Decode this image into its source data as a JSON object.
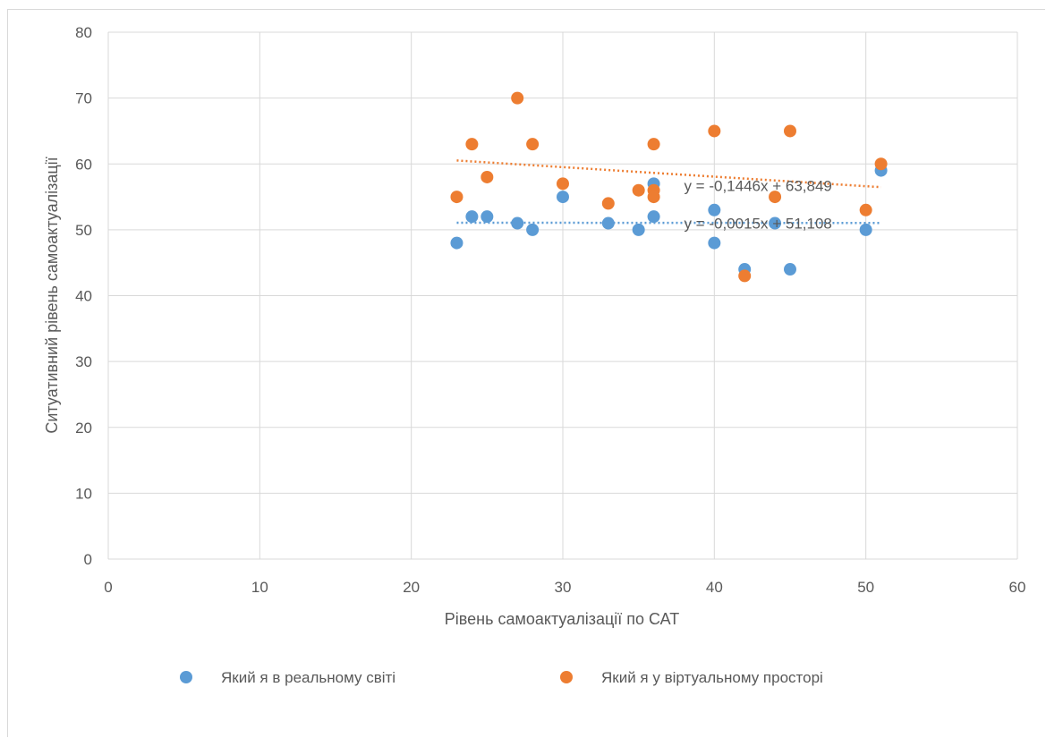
{
  "chart_data": {
    "type": "scatter",
    "xlabel": "Рівень самоактуалізації по САТ",
    "ylabel": "Ситуативний рівень самоактуалізації",
    "xlim": [
      0,
      60
    ],
    "ylim": [
      0,
      80
    ],
    "xticks": [
      0,
      10,
      20,
      30,
      40,
      50,
      60
    ],
    "yticks": [
      0,
      10,
      20,
      30,
      40,
      50,
      60,
      70,
      80
    ],
    "grid": true,
    "legend_position": "bottom",
    "series": [
      {
        "name": "Який я в реальному світі",
        "color": "#5B9BD5",
        "points": [
          [
            23,
            48
          ],
          [
            24,
            52
          ],
          [
            25,
            52
          ],
          [
            27,
            51
          ],
          [
            28,
            50
          ],
          [
            30,
            55
          ],
          [
            33,
            51
          ],
          [
            35,
            50
          ],
          [
            36,
            57
          ],
          [
            36,
            52
          ],
          [
            40,
            53
          ],
          [
            40,
            48
          ],
          [
            42,
            44
          ],
          [
            44,
            51
          ],
          [
            45,
            44
          ],
          [
            50,
            50
          ],
          [
            51,
            59
          ]
        ],
        "trendline": {
          "type": "linear",
          "slope": -0.0015,
          "intercept": 51.108,
          "x_range": [
            23,
            51
          ],
          "equation": "y = -0,0015x + 51,108"
        }
      },
      {
        "name": "Який я у віртуальному просторі",
        "color": "#ED7D31",
        "points": [
          [
            23,
            55
          ],
          [
            24,
            63
          ],
          [
            25,
            58
          ],
          [
            27,
            70
          ],
          [
            28,
            63
          ],
          [
            30,
            57
          ],
          [
            33,
            54
          ],
          [
            35,
            56
          ],
          [
            36,
            63
          ],
          [
            36,
            56
          ],
          [
            36,
            55
          ],
          [
            40,
            65
          ],
          [
            42,
            43
          ],
          [
            44,
            55
          ],
          [
            45,
            65
          ],
          [
            50,
            53
          ],
          [
            51,
            60
          ]
        ],
        "trendline": {
          "type": "linear",
          "slope": -0.1446,
          "intercept": 63.849,
          "x_range": [
            23,
            51
          ],
          "equation": "y = -0,1446x + 63,849"
        }
      }
    ]
  }
}
